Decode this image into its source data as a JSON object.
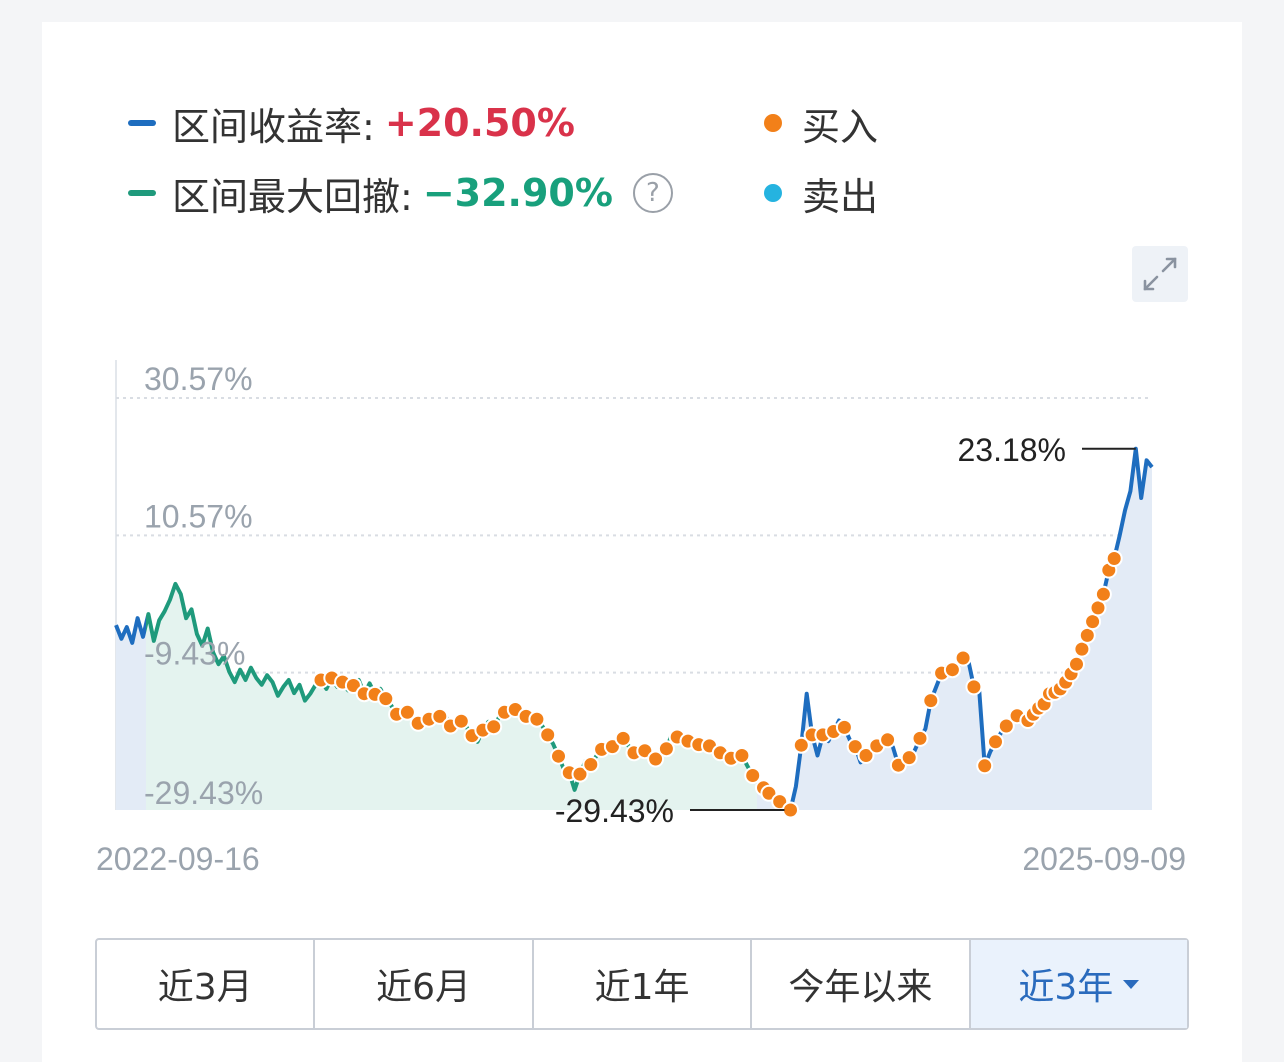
{
  "legend": {
    "return_label": "区间收益率:",
    "return_value": "+20.50%",
    "drawdown_label": "区间最大回撤:",
    "drawdown_value": "−32.90%",
    "help_icon": "?",
    "buy_label": "买入",
    "sell_label": "卖出"
  },
  "colors": {
    "rise_line": "#1e6dbf",
    "fall_line": "#1f9a7c",
    "positive": "#d9324a",
    "negative": "#18a07c",
    "buy": "#f28019",
    "sell": "#25b3e0",
    "area_blue": "#e3ebf6",
    "area_green": "#e4f3ef"
  },
  "chart_data": {
    "type": "line",
    "x_start": "2022-09-16",
    "x_end": "2025-09-09",
    "y_ticks": [
      "30.57%",
      "10.57%",
      "-9.43%",
      "-29.43%"
    ],
    "ylim": [
      -29.43,
      30.57
    ],
    "max_label": "23.18%",
    "min_label": "-29.43%",
    "series": [
      {
        "values": [
          -2.5,
          -4.5,
          -2.8,
          -5.1,
          -1.5,
          -4.2,
          -0.9,
          -4.8,
          -1.8,
          -0.5,
          1.2,
          3.5,
          2.0,
          -1.5,
          -0.2,
          -3.8,
          -5.5,
          -3.0,
          -6.5,
          -8.2,
          -7.0,
          -9.3,
          -10.8,
          -9.0,
          -10.5,
          -8.7,
          -10.2,
          -11.2,
          -9.8,
          -10.8,
          -12.8,
          -11.5,
          -10.5,
          -12.4,
          -11.2,
          -13.5,
          -12.5,
          -11.2,
          -10.5,
          -11.8,
          -10.2,
          -11.5,
          -10.8,
          -12.0,
          -11.3,
          -10.5,
          -12.5,
          -11.0,
          -12.6,
          -11.8,
          -13.2,
          -14.2,
          -15.5,
          -15.3,
          -15.2,
          -16.0,
          -16.8,
          -17.0,
          -16.2,
          -16.5,
          -15.8,
          -15.6,
          -17.2,
          -17.5,
          -16.5,
          -17.4,
          -18.6,
          -19.5,
          -17.8,
          -16.6,
          -17.3,
          -15.9,
          -15.2,
          -14.5,
          -14.8,
          -15.4,
          -15.8,
          -16.5,
          -16.2,
          -17.2,
          -18.5,
          -19.8,
          -21.6,
          -23.5,
          -24.0,
          -26.5,
          -24.2,
          -22.3,
          -22.8,
          -21.6,
          -20.6,
          -21.1,
          -20.2,
          -19.6,
          -19.0,
          -20.1,
          -21.1,
          -20.5,
          -20.8,
          -21.4,
          -22.0,
          -21.8,
          -20.5,
          -18.4,
          -18.8,
          -19.0,
          -19.4,
          -19.6,
          -19.9,
          -20.0,
          -20.1,
          -20.5,
          -21.1,
          -21.4,
          -21.9,
          -21.2,
          -21.5,
          -23.0,
          -24.4,
          -25.5,
          -26.2,
          -27.0,
          -27.6,
          -28.2,
          -29.1,
          -29.43,
          -26.0,
          -20.0,
          -12.5,
          -18.5,
          -21.5,
          -18.5,
          -19.4,
          -18.0,
          -16.4,
          -17.4,
          -19.2,
          -20.2,
          -22.5,
          -21.5,
          -20.6,
          -20.1,
          -19.6,
          -19.2,
          -20.3,
          -22.9,
          -22.5,
          -21.8,
          -20.8,
          -19.0,
          -17.6,
          -13.5,
          -11.5,
          -9.5,
          -8.5,
          -9.0,
          -8.5,
          -7.3,
          -7.8,
          -11.5,
          -12.2,
          -23.0,
          -21.0,
          -19.5,
          -18.2,
          -17.2,
          -16.3,
          -15.7,
          -15.8,
          -16.4,
          -15.5,
          -14.6,
          -14.0,
          -12.5,
          -12.3,
          -11.8,
          -10.8,
          -9.6,
          -8.2,
          -6.0,
          -4.0,
          -2.0,
          0.0,
          2.0,
          5.5,
          7.2,
          10.5,
          14.2,
          17.0,
          23.18,
          16.0,
          21.5,
          20.5
        ]
      }
    ]
  },
  "tabs": [
    {
      "label": "近3月"
    },
    {
      "label": "近6月"
    },
    {
      "label": "近1年"
    },
    {
      "label": "今年以来"
    },
    {
      "label": "近3年"
    }
  ]
}
